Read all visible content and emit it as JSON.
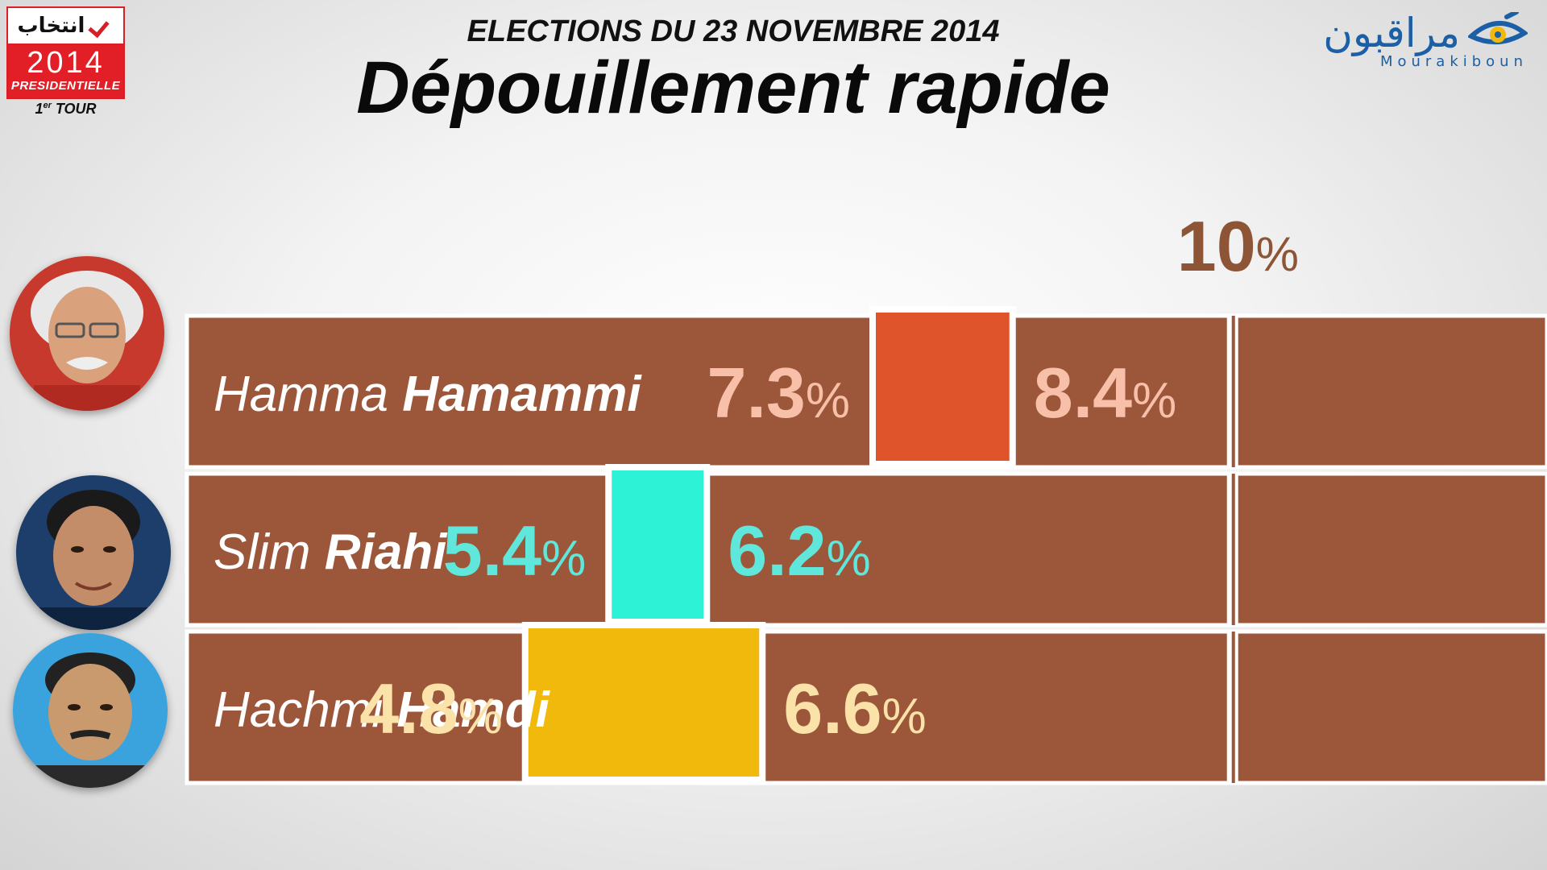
{
  "badge": {
    "arabic": "انتخاب",
    "year": "2014",
    "label": "PRESIDENTIELLE",
    "round_num": "1",
    "round_sup": "er",
    "round_text": "TOUR"
  },
  "header": {
    "subtitle": "ELECTIONS DU 23 NOVEMBRE 2014",
    "title": "Dépouillement rapide"
  },
  "logo": {
    "arabic": "مراقبون",
    "latin": "Mourakiboun",
    "color": "#1b5fa6",
    "icon": "eye-icon"
  },
  "chart_data": {
    "type": "bar",
    "tick_labels": [
      {
        "value": 10,
        "label": "10",
        "unit": "%"
      }
    ],
    "series": [
      {
        "first_name": "Hamma",
        "last_name": "Hamammi",
        "low": 7.3,
        "high": 8.4,
        "color": "#e0542b",
        "label_color": "#f8c0a8"
      },
      {
        "first_name": "Slim",
        "last_name": "Riahi",
        "low": 5.4,
        "high": 6.2,
        "color": "#2ef2d5",
        "label_color": "#5fe7dc"
      },
      {
        "first_name": "Hachmi",
        "last_name": "Hamdi",
        "low": 4.8,
        "high": 6.6,
        "color": "#f0b90b",
        "label_color": "#fbe2a8"
      }
    ],
    "bar_color": "#9c573b",
    "grid": false,
    "legend": "none"
  }
}
